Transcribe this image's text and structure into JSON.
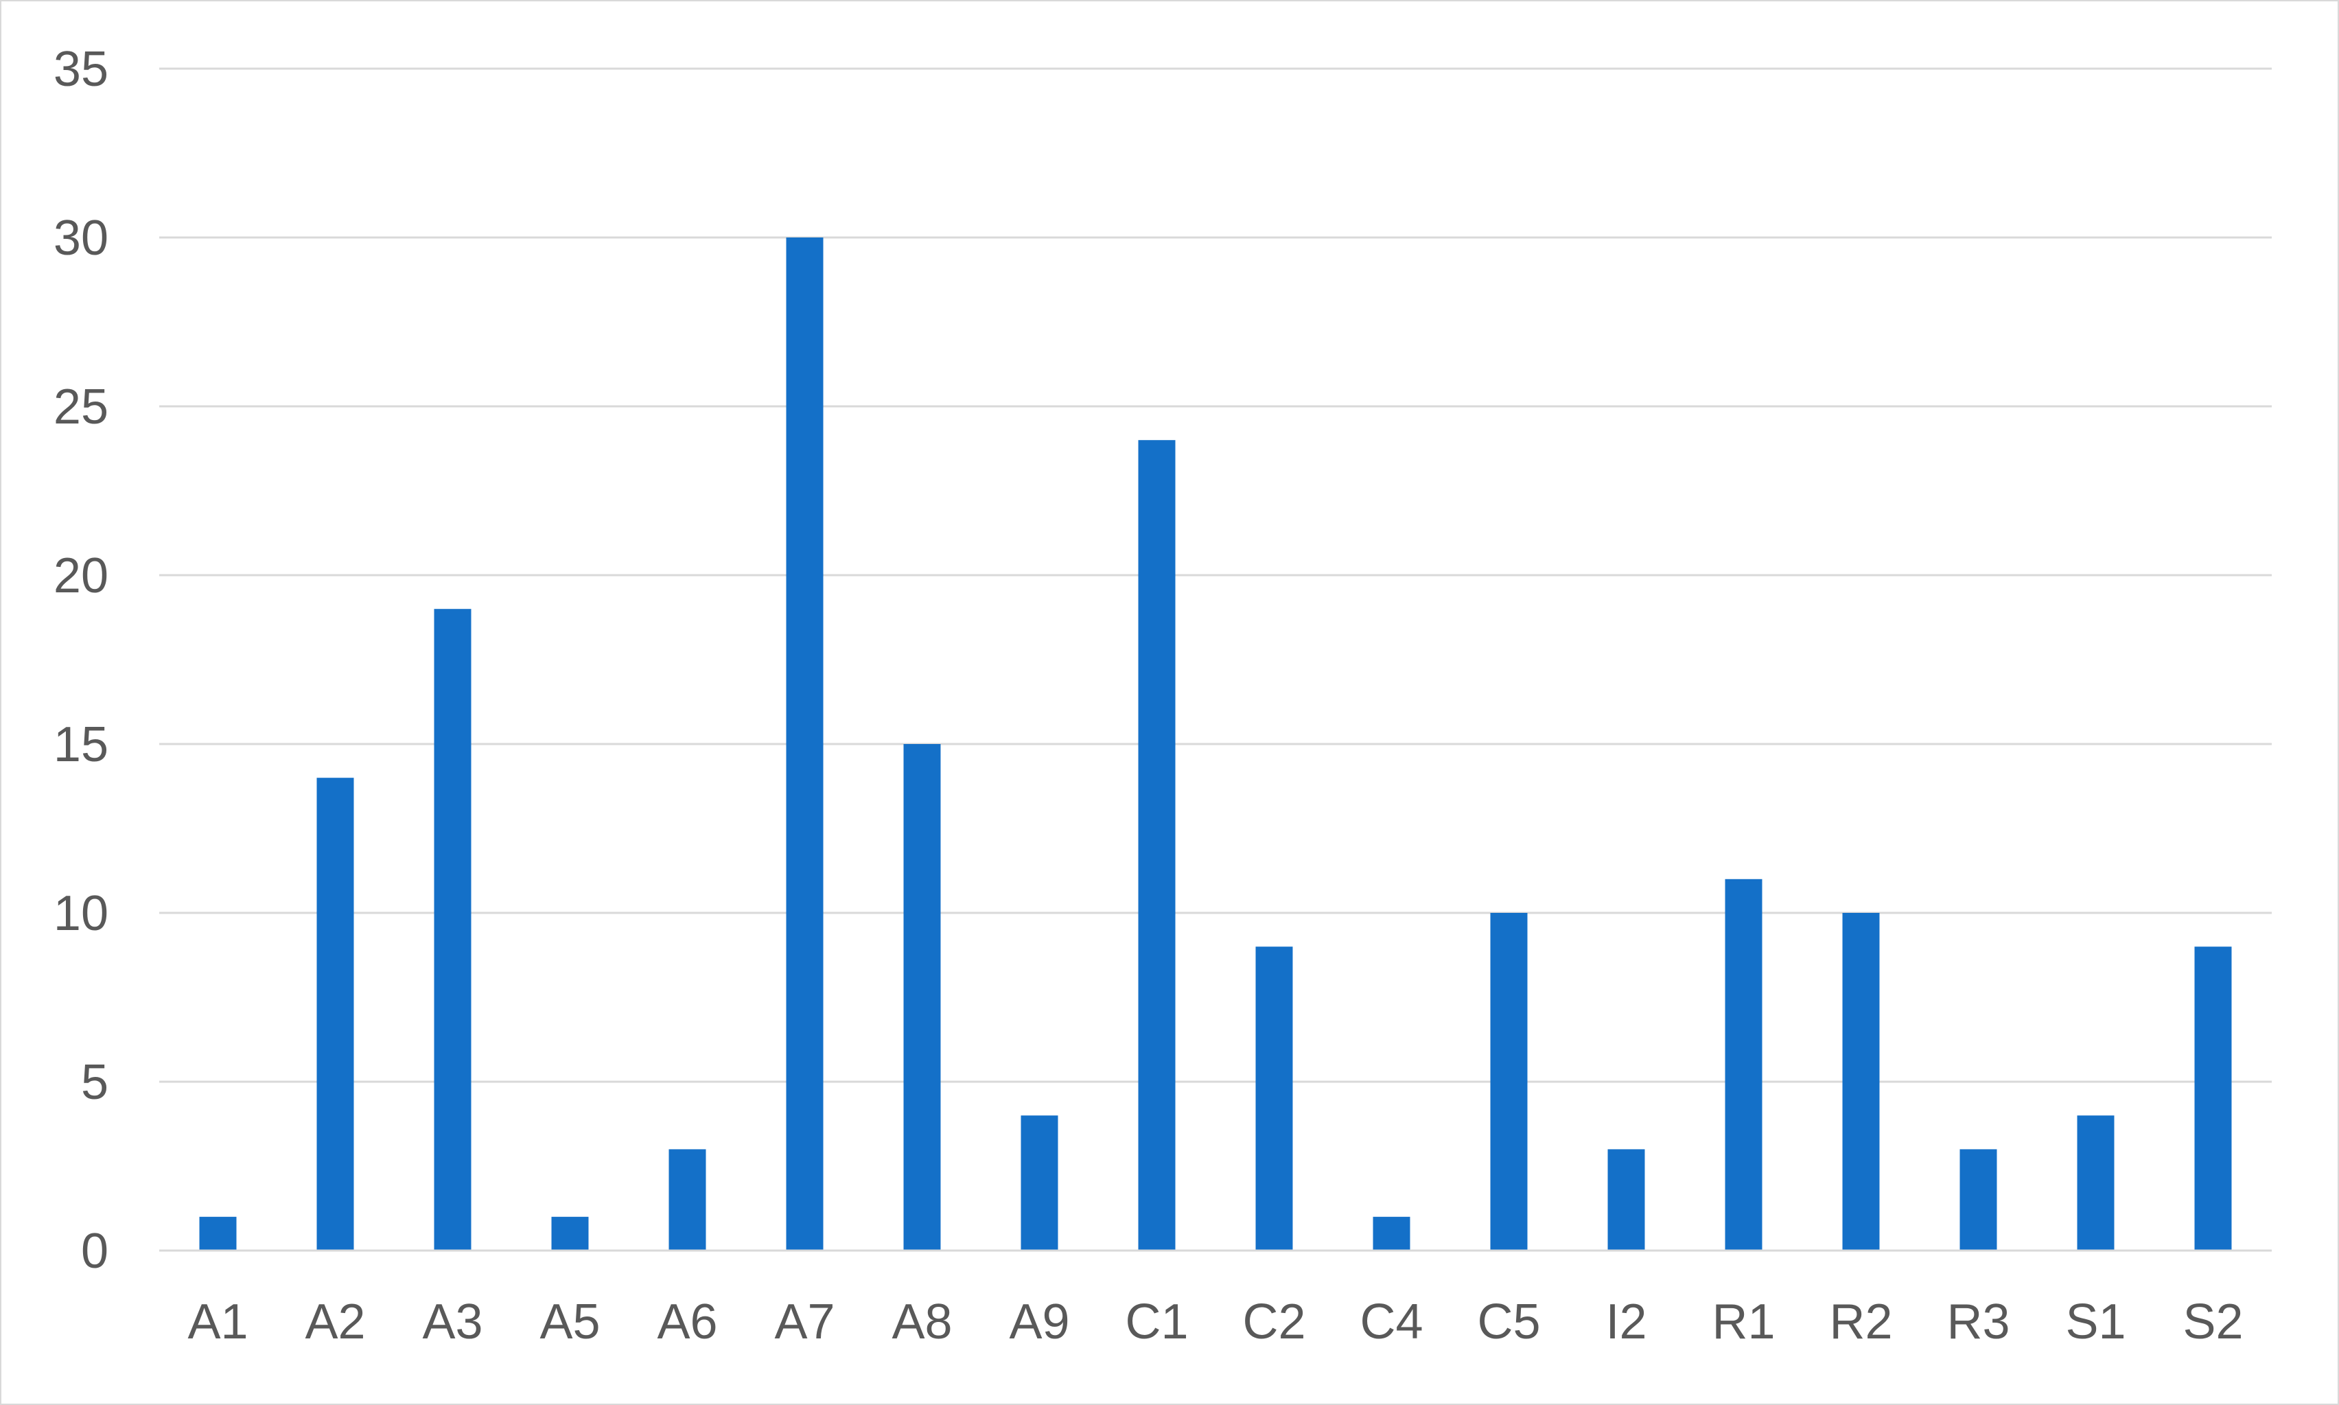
{
  "chart_data": {
    "type": "bar",
    "title": "",
    "xlabel": "",
    "ylabel": "",
    "categories": [
      "A1",
      "A2",
      "A3",
      "A5",
      "A6",
      "A7",
      "A8",
      "A9",
      "C1",
      "C2",
      "C4",
      "C5",
      "I2",
      "R1",
      "R2",
      "R3",
      "S1",
      "S2"
    ],
    "values": [
      1,
      14,
      19,
      1,
      3,
      30,
      15,
      4,
      24,
      9,
      1,
      10,
      3,
      11,
      10,
      3,
      4,
      9
    ],
    "ylim": [
      0,
      35
    ],
    "yticks": [
      "0",
      "5",
      "10",
      "15",
      "20",
      "25",
      "30",
      "35"
    ],
    "grid": true,
    "legend": "none",
    "bar_color": "#1470C8"
  }
}
